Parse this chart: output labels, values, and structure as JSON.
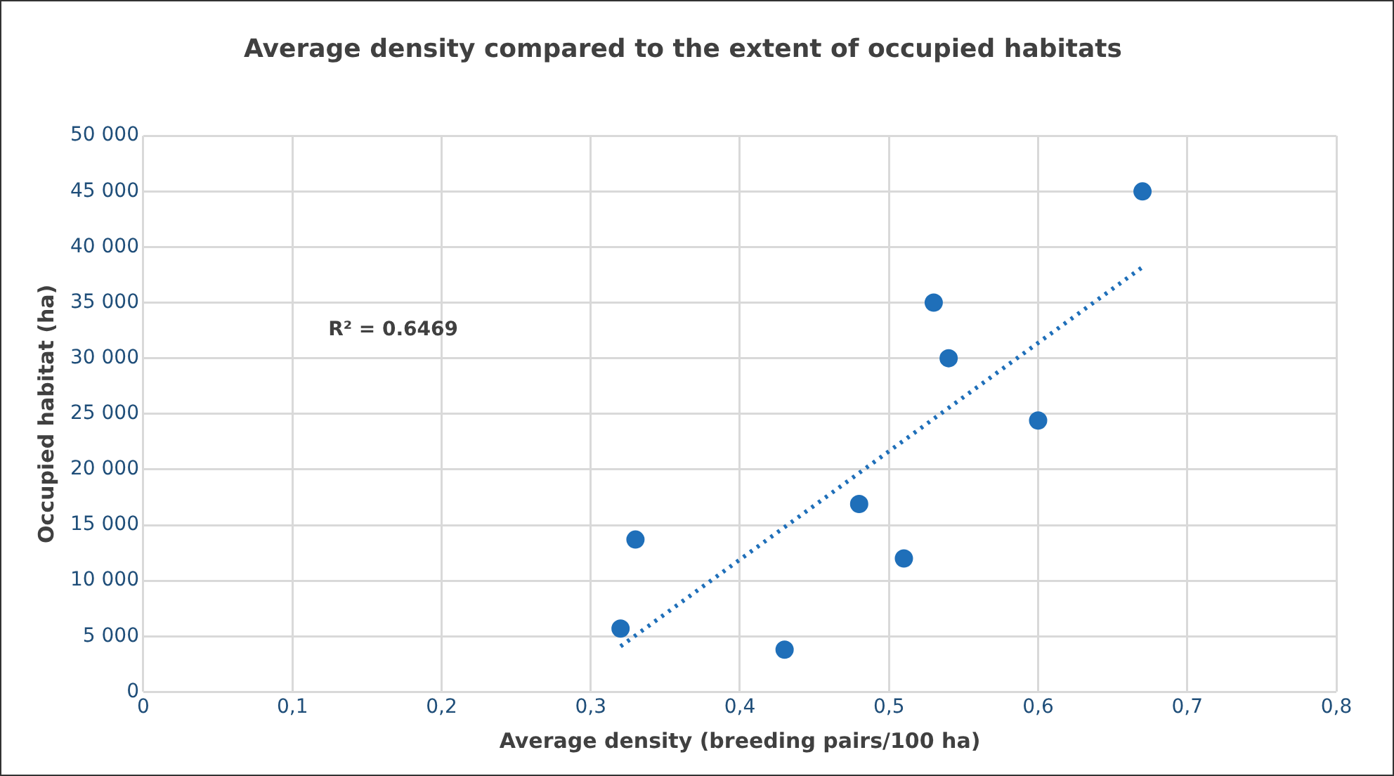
{
  "chart_data": {
    "type": "scatter",
    "title": "Average density compared to the extent of occupied habitats",
    "xlabel": "Average density (breeding pairs/100 ha)",
    "ylabel": "Occupied habitat (ha)",
    "series": [
      {
        "color": "#1f6fb9",
        "x": [
          0.32,
          0.33,
          0.43,
          0.48,
          0.51,
          0.53,
          0.54,
          0.6,
          0.67
        ],
        "values": [
          5700,
          13700,
          3800,
          16900,
          12000,
          35000,
          30000,
          24400,
          45000
        ],
        "marker": "circle"
      },
      {
        "type": "line",
        "color": "#1f6fb9",
        "x": [
          0.32,
          0.67
        ],
        "values": [
          4100,
          38200
        ],
        "line_style": "dotted",
        "marker": "none"
      }
    ],
    "annotations": [
      "R² = 0.6469"
    ],
    "xlim": [
      0,
      0.8
    ],
    "xticks": [
      0,
      {
        "value": 0.1,
        "label": "0,1"
      },
      {
        "value": 0.2,
        "label": "0,2"
      },
      {
        "value": 0.3,
        "label": "0,3"
      },
      {
        "value": 0.4,
        "label": "0,4"
      },
      {
        "value": 0.5,
        "label": "0,5"
      },
      {
        "value": 0.6,
        "label": "0,6"
      },
      {
        "value": 0.7,
        "label": "0,7"
      },
      {
        "value": 0.8,
        "label": "0,8"
      }
    ],
    "ylim": [
      0,
      50000
    ],
    "yticks": [
      0,
      {
        "value": 5000,
        "label": "5 000"
      },
      {
        "value": 10000,
        "label": "10 000"
      },
      {
        "value": 15000,
        "label": "15 000"
      },
      {
        "value": 20000,
        "label": "20 000"
      },
      {
        "value": 25000,
        "label": "25 000"
      },
      {
        "value": 30000,
        "label": "30 000"
      },
      {
        "value": 35000,
        "label": "35 000"
      },
      {
        "value": 40000,
        "label": "40 000"
      },
      {
        "value": 45000,
        "label": "45 000"
      },
      {
        "value": 50000,
        "label": "50 000"
      }
    ],
    "grid": true,
    "legend": false
  }
}
